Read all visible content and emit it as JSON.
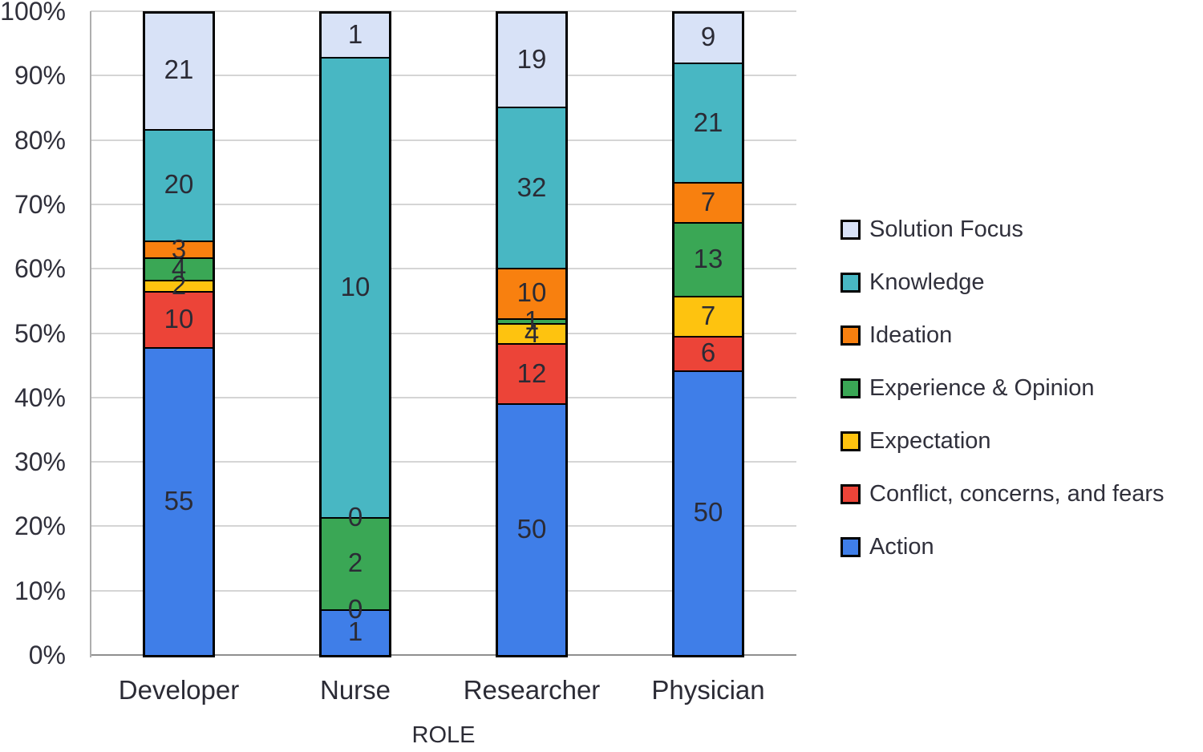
{
  "chart_data": {
    "type": "bar",
    "subtype": "stacked-100-percent",
    "categories": [
      "Developer",
      "Nurse",
      "Researcher",
      "Physician"
    ],
    "series": [
      {
        "name": "Action",
        "color": "#3F7EE8",
        "values": [
          55,
          1,
          50,
          50
        ]
      },
      {
        "name": "Conflict, concerns, and fears",
        "color": "#EC4438",
        "values": [
          10,
          0,
          12,
          6
        ]
      },
      {
        "name": "Expectation",
        "color": "#FEC30F",
        "values": [
          2,
          0,
          4,
          7
        ]
      },
      {
        "name": "Experience & Opinion",
        "color": "#3AA755",
        "values": [
          4,
          2,
          1,
          13
        ]
      },
      {
        "name": "Ideation",
        "color": "#F8800F",
        "values": [
          3,
          0,
          10,
          7
        ]
      },
      {
        "name": "Knowledge",
        "color": "#48B7C3",
        "values": [
          20,
          10,
          32,
          21
        ]
      },
      {
        "name": "Solution Focus",
        "color": "#D8E2F7",
        "values": [
          21,
          1,
          19,
          9
        ]
      }
    ],
    "xlabel": "ROLE",
    "ylabel": "",
    "y_ticks": [
      "0%",
      "10%",
      "20%",
      "30%",
      "40%",
      "50%",
      "60%",
      "70%",
      "80%",
      "90%",
      "100%"
    ],
    "ylim": [
      0,
      100
    ],
    "grid": "horizontal",
    "legend_position": "right",
    "legend_top_to_bottom": [
      "Solution Focus",
      "Knowledge",
      "Ideation",
      "Experience & Opinion",
      "Expectation",
      "Conflict, concerns, and fears",
      "Action"
    ]
  }
}
